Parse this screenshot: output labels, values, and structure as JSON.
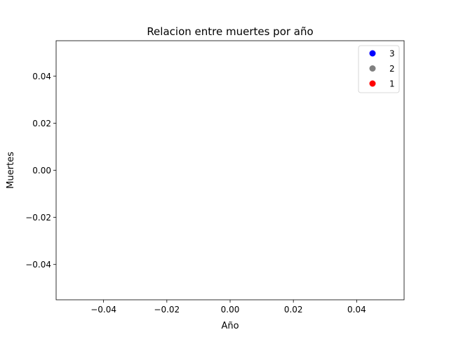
{
  "chart_data": {
    "type": "scatter",
    "title": "Relacion entre muertes por año",
    "xlabel": "Año",
    "ylabel": "Muertes",
    "xlim": [
      -0.055,
      0.055
    ],
    "ylim": [
      -0.055,
      0.055
    ],
    "x_ticks": [
      -0.04,
      -0.02,
      0.0,
      0.02,
      0.04
    ],
    "x_tick_labels": [
      "−0.04",
      "−0.02",
      "0.00",
      "0.02",
      "0.04"
    ],
    "y_ticks": [
      -0.04,
      -0.02,
      0.0,
      0.02,
      0.04
    ],
    "y_tick_labels": [
      "−0.04",
      "−0.02",
      "0.00",
      "0.02",
      "0.04"
    ],
    "grid": false,
    "legend_position": "top-right",
    "series": [
      {
        "name": "3",
        "color": "#0000ff",
        "x": [],
        "y": []
      },
      {
        "name": "2",
        "color": "#808080",
        "x": [],
        "y": []
      },
      {
        "name": "1",
        "color": "#ff0000",
        "x": [],
        "y": []
      }
    ]
  }
}
